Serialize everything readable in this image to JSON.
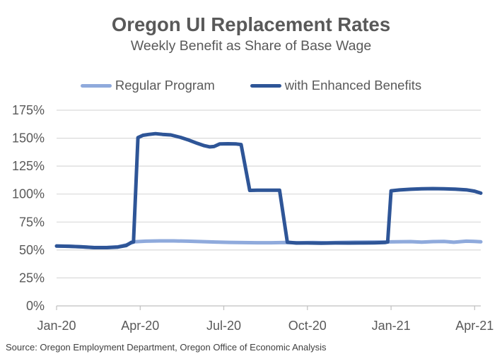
{
  "chart_data": {
    "type": "line",
    "title": "Oregon UI Replacement Rates",
    "subtitle": "Weekly Benefit as Share of Base Wage",
    "source": "Source: Oregon Employment Department, Oregon Office of Economic Analysis",
    "x_unit": "months since Jan-2020 (weekly series)",
    "x_range": [
      0,
      15.22
    ],
    "y_range": [
      0,
      175
    ],
    "y_ticks": [
      0,
      25,
      50,
      75,
      100,
      125,
      150,
      175
    ],
    "y_tick_suffix": "%",
    "x_ticks": [
      {
        "label": "Jan-20",
        "x": 0
      },
      {
        "label": "Apr-20",
        "x": 3
      },
      {
        "label": "Jul-20",
        "x": 6
      },
      {
        "label": "Oct-20",
        "x": 9
      },
      {
        "label": "Jan-21",
        "x": 12
      },
      {
        "label": "Apr-21",
        "x": 15
      }
    ],
    "grid": true,
    "legend_position": "top-center",
    "palette": {
      "text": "#595959",
      "source_text": "#404040",
      "gridline": "#D9D9D9",
      "axis_line": "#BFBFBF",
      "background": "#FFFFFF"
    },
    "series": [
      {
        "name": "Regular Program",
        "color": "#8FAADC",
        "points": [
          [
            0,
            53.5
          ],
          [
            0.45,
            53.3
          ],
          [
            0.9,
            52.8
          ],
          [
            1.35,
            52.2
          ],
          [
            1.8,
            52.2
          ],
          [
            2.2,
            52.8
          ],
          [
            2.5,
            54.5
          ],
          [
            2.78,
            57.3
          ],
          [
            3.2,
            57.9
          ],
          [
            3.7,
            58.1
          ],
          [
            4.2,
            58.1
          ],
          [
            4.7,
            57.9
          ],
          [
            5.2,
            57.5
          ],
          [
            5.7,
            57.1
          ],
          [
            6.2,
            56.8
          ],
          [
            6.7,
            56.6
          ],
          [
            7.2,
            56.5
          ],
          [
            7.7,
            56.5
          ],
          [
            8.2,
            56.7
          ],
          [
            8.7,
            56.5
          ],
          [
            9.2,
            56.7
          ],
          [
            9.7,
            56.5
          ],
          [
            10.2,
            56.8
          ],
          [
            10.7,
            57.0
          ],
          [
            11.2,
            57.1
          ],
          [
            11.7,
            57.2
          ],
          [
            12.2,
            57.3
          ],
          [
            12.7,
            57.5
          ],
          [
            13.1,
            57.0
          ],
          [
            13.5,
            57.5
          ],
          [
            13.9,
            57.7
          ],
          [
            14.25,
            56.9
          ],
          [
            14.7,
            57.9
          ],
          [
            15.0,
            57.6
          ],
          [
            15.22,
            57.3
          ]
        ]
      },
      {
        "name": "with Enhanced Benefits",
        "color": "#2E5597",
        "points": [
          [
            0,
            53.5
          ],
          [
            0.45,
            53.3
          ],
          [
            0.9,
            52.8
          ],
          [
            1.35,
            52.1
          ],
          [
            1.8,
            52.1
          ],
          [
            2.2,
            52.6
          ],
          [
            2.5,
            54.0
          ],
          [
            2.68,
            56.8
          ],
          [
            2.76,
            57.2
          ],
          [
            2.92,
            150.5
          ],
          [
            3.1,
            152.6
          ],
          [
            3.3,
            153.3
          ],
          [
            3.55,
            154.0
          ],
          [
            3.8,
            153.4
          ],
          [
            4.1,
            152.9
          ],
          [
            4.45,
            150.7
          ],
          [
            4.75,
            148.2
          ],
          [
            5.05,
            145.4
          ],
          [
            5.3,
            143.3
          ],
          [
            5.5,
            142.2
          ],
          [
            5.65,
            142.5
          ],
          [
            5.85,
            144.8
          ],
          [
            6.15,
            145.0
          ],
          [
            6.45,
            144.8
          ],
          [
            6.62,
            144.3
          ],
          [
            6.93,
            103.3
          ],
          [
            7.2,
            103.4
          ],
          [
            7.6,
            103.5
          ],
          [
            8.0,
            103.5
          ],
          [
            8.28,
            56.9
          ],
          [
            8.6,
            56.2
          ],
          [
            9.0,
            56.3
          ],
          [
            9.5,
            56.1
          ],
          [
            10.0,
            56.3
          ],
          [
            10.5,
            56.2
          ],
          [
            11.0,
            56.3
          ],
          [
            11.4,
            56.4
          ],
          [
            11.78,
            56.7
          ],
          [
            11.88,
            57.1
          ],
          [
            12.0,
            102.9
          ],
          [
            12.3,
            103.7
          ],
          [
            12.7,
            104.3
          ],
          [
            13.1,
            104.7
          ],
          [
            13.5,
            104.9
          ],
          [
            13.9,
            104.7
          ],
          [
            14.3,
            104.4
          ],
          [
            14.7,
            103.8
          ],
          [
            15.0,
            102.6
          ],
          [
            15.22,
            100.8
          ]
        ]
      }
    ]
  }
}
